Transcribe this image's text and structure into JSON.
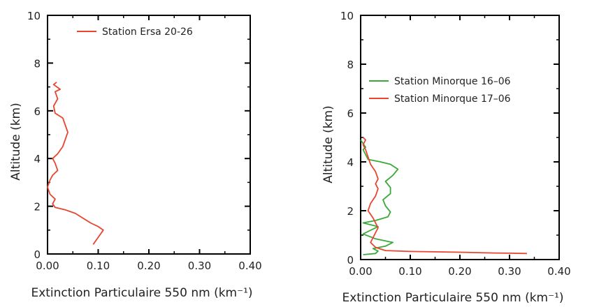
{
  "chart_data": [
    {
      "type": "line",
      "xlabel": "Extinction Particulaire 550 nm (km⁻¹)",
      "ylabel": "Altitude (km)",
      "xlim": [
        0,
        0.4
      ],
      "ylim": [
        0,
        10
      ],
      "xticks": [
        "0.00",
        "0.10",
        "0.20",
        "0.30",
        "0.40"
      ],
      "yticks": [
        "0",
        "2",
        "4",
        "6",
        "8",
        "10"
      ],
      "legend_position": "top",
      "series": [
        {
          "name": "Station Ersa 20-26",
          "color": "#e8442e",
          "points": [
            [
              0.09,
              0.4
            ],
            [
              0.1,
              0.7
            ],
            [
              0.11,
              1.0
            ],
            [
              0.1,
              1.15
            ],
            [
              0.085,
              1.3
            ],
            [
              0.07,
              1.5
            ],
            [
              0.055,
              1.7
            ],
            [
              0.035,
              1.85
            ],
            [
              0.015,
              1.95
            ],
            [
              0.01,
              2.1
            ],
            [
              0.015,
              2.3
            ],
            [
              0.005,
              2.5
            ],
            [
              0.0,
              2.8
            ],
            [
              0.005,
              3.1
            ],
            [
              0.01,
              3.3
            ],
            [
              0.02,
              3.5
            ],
            [
              0.015,
              3.8
            ],
            [
              0.01,
              4.0
            ],
            [
              0.02,
              4.2
            ],
            [
              0.03,
              4.5
            ],
            [
              0.035,
              4.8
            ],
            [
              0.04,
              5.1
            ],
            [
              0.03,
              5.7
            ],
            [
              0.015,
              5.9
            ],
            [
              0.012,
              6.2
            ],
            [
              0.02,
              6.5
            ],
            [
              0.015,
              6.8
            ],
            [
              0.025,
              6.9
            ],
            [
              0.012,
              7.1
            ],
            [
              0.018,
              7.2
            ]
          ]
        }
      ]
    },
    {
      "type": "line",
      "xlabel": "Extinction Particulaire 550 nm (km⁻¹)",
      "ylabel": "Altitude (km)",
      "xlim": [
        0,
        0.4
      ],
      "ylim": [
        0,
        10
      ],
      "xticks": [
        "0.00",
        "0.10",
        "0.20",
        "0.30",
        "0.40"
      ],
      "yticks": [
        "0",
        "2",
        "4",
        "6",
        "8",
        "10"
      ],
      "legend_position": "top-left",
      "series": [
        {
          "name": "Station Minorque 16–06",
          "color": "#3aa93a",
          "points": [
            [
              0.005,
              0.2
            ],
            [
              0.03,
              0.25
            ],
            [
              0.035,
              0.35
            ],
            [
              0.025,
              0.45
            ],
            [
              0.05,
              0.55
            ],
            [
              0.065,
              0.7
            ],
            [
              0.03,
              0.85
            ],
            [
              0.005,
              1.05
            ],
            [
              0.02,
              1.2
            ],
            [
              0.035,
              1.35
            ],
            [
              0.005,
              1.5
            ],
            [
              0.03,
              1.6
            ],
            [
              0.055,
              1.75
            ],
            [
              0.06,
              1.95
            ],
            [
              0.05,
              2.2
            ],
            [
              0.045,
              2.45
            ],
            [
              0.06,
              2.7
            ],
            [
              0.06,
              2.95
            ],
            [
              0.05,
              3.2
            ],
            [
              0.065,
              3.45
            ],
            [
              0.075,
              3.7
            ],
            [
              0.06,
              3.9
            ],
            [
              0.04,
              4.0
            ],
            [
              0.015,
              4.1
            ],
            [
              0.01,
              4.3
            ],
            [
              0.005,
              4.5
            ],
            [
              0.01,
              4.6
            ],
            [
              0.005,
              4.75
            ],
            [
              0.0,
              4.9
            ]
          ]
        },
        {
          "name": "Station Minorque 17–06",
          "color": "#e8442e",
          "points": [
            [
              0.335,
              0.25
            ],
            [
              0.3,
              0.26
            ],
            [
              0.27,
              0.27
            ],
            [
              0.2,
              0.3
            ],
            [
              0.1,
              0.33
            ],
            [
              0.05,
              0.37
            ],
            [
              0.03,
              0.5
            ],
            [
              0.02,
              0.7
            ],
            [
              0.025,
              0.9
            ],
            [
              0.03,
              1.1
            ],
            [
              0.035,
              1.3
            ],
            [
              0.03,
              1.5
            ],
            [
              0.025,
              1.7
            ],
            [
              0.015,
              2.0
            ],
            [
              0.02,
              2.3
            ],
            [
              0.03,
              2.6
            ],
            [
              0.035,
              2.9
            ],
            [
              0.03,
              3.1
            ],
            [
              0.035,
              3.3
            ],
            [
              0.03,
              3.6
            ],
            [
              0.02,
              3.9
            ],
            [
              0.015,
              4.2
            ],
            [
              0.01,
              4.5
            ],
            [
              0.005,
              4.7
            ],
            [
              0.01,
              4.9
            ],
            [
              0.005,
              5.0
            ]
          ]
        }
      ]
    }
  ]
}
